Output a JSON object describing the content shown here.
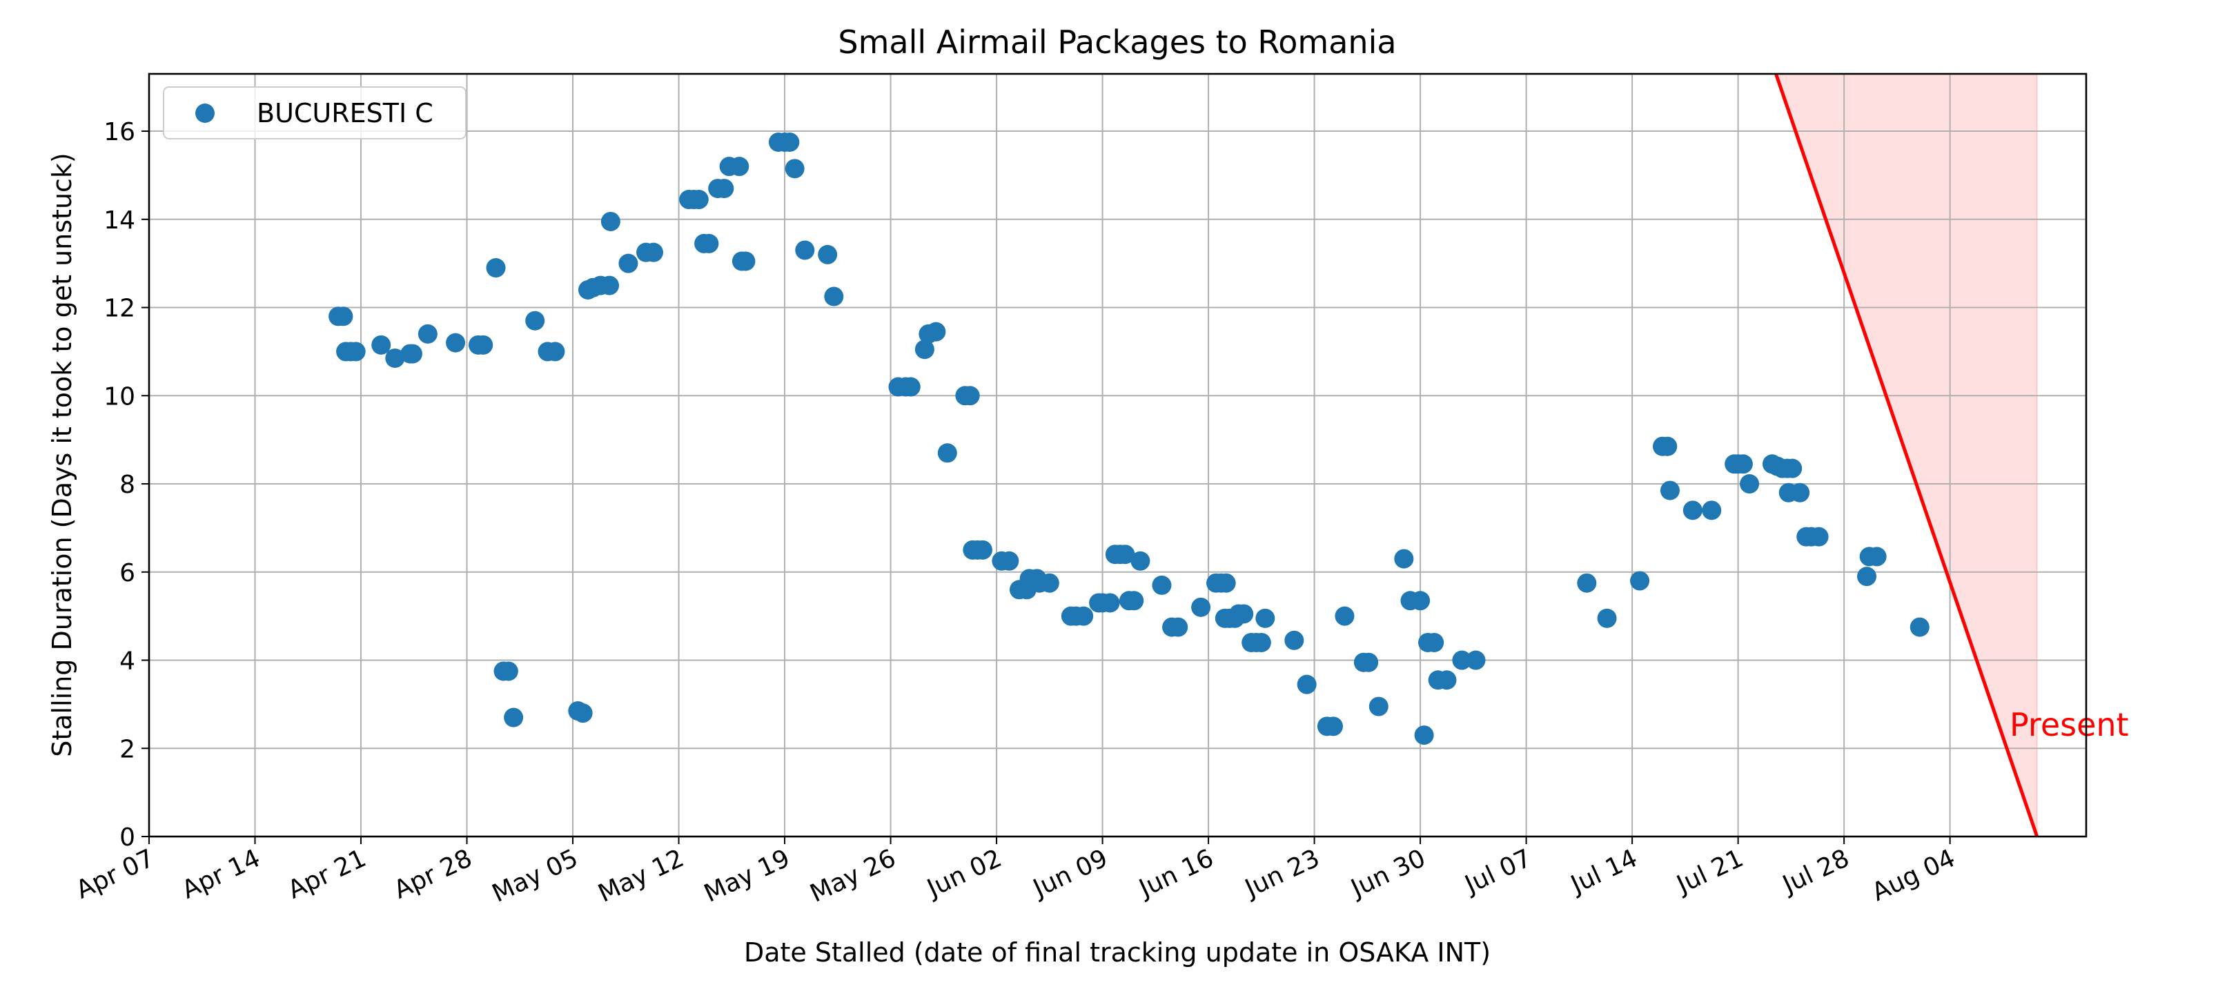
{
  "chart_data": {
    "type": "scatter",
    "title": "Small Airmail Packages to Romania",
    "xlabel": "Date Stalled (date of final tracking update in OSAKA INT)",
    "ylabel": "Stalling Duration (Days it took to get unstuck)",
    "xlim": [
      "2024-04-07",
      "2024-08-13"
    ],
    "ylim": [
      0,
      17.3
    ],
    "grid": true,
    "legend_position": "upper left",
    "x_ticks": [
      "2024-04-07",
      "2024-04-14",
      "2024-04-21",
      "2024-04-28",
      "2024-05-05",
      "2024-05-12",
      "2024-05-19",
      "2024-05-26",
      "2024-06-02",
      "2024-06-09",
      "2024-06-16",
      "2024-06-23",
      "2024-06-30",
      "2024-07-07",
      "2024-07-14",
      "2024-07-21",
      "2024-07-28",
      "2024-08-04"
    ],
    "x_tick_labels": [
      "Apr 07",
      "Apr 14",
      "Apr 21",
      "Apr 28",
      "May 05",
      "May 12",
      "May 19",
      "May 26",
      "Jun 02",
      "Jun 09",
      "Jun 16",
      "Jun 23",
      "Jun 30",
      "Jul 07",
      "Jul 14",
      "Jul 21",
      "Jul 28",
      "Aug 04"
    ],
    "y_ticks": [
      0,
      2,
      4,
      6,
      8,
      10,
      12,
      14,
      16
    ],
    "y_tick_labels": [
      "0",
      "2",
      "4",
      "6",
      "8",
      "10",
      "12",
      "14",
      "16"
    ],
    "series": [
      {
        "name": "BUCURESTI C",
        "color": "#1f77b4",
        "points": [
          [
            "2024-04-19T12",
            11.8
          ],
          [
            "2024-04-19T20",
            11.8
          ],
          [
            "2024-04-20T00",
            11.0
          ],
          [
            "2024-04-20T08",
            11.0
          ],
          [
            "2024-04-20T16",
            11.0
          ],
          [
            "2024-04-22T08",
            11.15
          ],
          [
            "2024-04-23T06",
            10.85
          ],
          [
            "2024-04-24T06",
            10.95
          ],
          [
            "2024-04-24T10",
            10.95
          ],
          [
            "2024-04-25T10",
            11.4
          ],
          [
            "2024-04-27T06",
            11.2
          ],
          [
            "2024-04-28T18",
            11.15
          ],
          [
            "2024-04-29T02",
            11.15
          ],
          [
            "2024-04-29T22",
            12.9
          ],
          [
            "2024-04-30T10",
            3.75
          ],
          [
            "2024-04-30T18",
            3.75
          ],
          [
            "2024-05-01T02",
            2.7
          ],
          [
            "2024-05-02T12",
            11.7
          ],
          [
            "2024-05-03T08",
            11.0
          ],
          [
            "2024-05-03T20",
            11.0
          ],
          [
            "2024-05-05T08",
            2.85
          ],
          [
            "2024-05-05T16",
            2.8
          ],
          [
            "2024-05-06T00",
            12.4
          ],
          [
            "2024-05-06T08",
            12.45
          ],
          [
            "2024-05-06T20",
            12.5
          ],
          [
            "2024-05-07T10",
            12.5
          ],
          [
            "2024-05-07T12",
            13.95
          ],
          [
            "2024-05-08T16",
            13.0
          ],
          [
            "2024-05-09T20",
            13.25
          ],
          [
            "2024-05-10T08",
            13.25
          ],
          [
            "2024-05-12T16",
            14.45
          ],
          [
            "2024-05-13T00",
            14.45
          ],
          [
            "2024-05-13T08",
            14.45
          ],
          [
            "2024-05-13T16",
            13.45
          ],
          [
            "2024-05-14T00",
            13.45
          ],
          [
            "2024-05-14T14",
            14.7
          ],
          [
            "2024-05-15T00",
            14.7
          ],
          [
            "2024-05-15T08",
            15.2
          ],
          [
            "2024-05-16T00",
            15.2
          ],
          [
            "2024-05-16T04",
            13.05
          ],
          [
            "2024-05-16T10",
            13.05
          ],
          [
            "2024-05-18T14",
            15.75
          ],
          [
            "2024-05-19T00",
            15.75
          ],
          [
            "2024-05-19T08",
            15.75
          ],
          [
            "2024-05-19T16",
            15.15
          ],
          [
            "2024-05-20T08",
            13.3
          ],
          [
            "2024-05-21T20",
            13.2
          ],
          [
            "2024-05-22T06",
            12.25
          ],
          [
            "2024-05-26T12",
            10.2
          ],
          [
            "2024-05-27T00",
            10.2
          ],
          [
            "2024-05-27T08",
            10.2
          ],
          [
            "2024-05-28T06",
            11.05
          ],
          [
            "2024-05-28T12",
            11.4
          ],
          [
            "2024-05-29T00",
            11.45
          ],
          [
            "2024-05-29T18",
            8.7
          ],
          [
            "2024-05-30T22",
            10.0
          ],
          [
            "2024-05-31T06",
            10.0
          ],
          [
            "2024-05-31T10",
            6.5
          ],
          [
            "2024-05-31T18",
            6.5
          ],
          [
            "2024-06-01T02",
            6.5
          ],
          [
            "2024-06-02T08",
            6.25
          ],
          [
            "2024-06-02T20",
            6.25
          ],
          [
            "2024-06-03T12",
            5.6
          ],
          [
            "2024-06-04T00",
            5.6
          ],
          [
            "2024-06-04T04",
            5.85
          ],
          [
            "2024-06-04T16",
            5.85
          ],
          [
            "2024-06-04T20",
            5.75
          ],
          [
            "2024-06-05T12",
            5.75
          ],
          [
            "2024-06-06T22",
            5.0
          ],
          [
            "2024-06-07T06",
            5.0
          ],
          [
            "2024-06-07T18",
            5.0
          ],
          [
            "2024-06-08T18",
            5.3
          ],
          [
            "2024-06-09T00",
            5.3
          ],
          [
            "2024-06-09T12",
            5.3
          ],
          [
            "2024-06-09T20",
            6.4
          ],
          [
            "2024-06-10T04",
            6.4
          ],
          [
            "2024-06-10T12",
            6.4
          ],
          [
            "2024-06-10T18",
            5.35
          ],
          [
            "2024-06-11T02",
            5.35
          ],
          [
            "2024-06-11T12",
            6.25
          ],
          [
            "2024-06-12T22",
            5.7
          ],
          [
            "2024-06-13T14",
            4.75
          ],
          [
            "2024-06-14T00",
            4.75
          ],
          [
            "2024-06-15T12",
            5.2
          ],
          [
            "2024-06-16T12",
            5.75
          ],
          [
            "2024-06-16T20",
            5.75
          ],
          [
            "2024-06-17T04",
            5.75
          ],
          [
            "2024-06-17T02",
            4.95
          ],
          [
            "2024-06-17T10",
            4.95
          ],
          [
            "2024-06-17T18",
            4.95
          ],
          [
            "2024-06-18T00",
            5.05
          ],
          [
            "2024-06-18T08",
            5.05
          ],
          [
            "2024-06-18T20",
            4.4
          ],
          [
            "2024-06-19T04",
            4.4
          ],
          [
            "2024-06-19T12",
            4.4
          ],
          [
            "2024-06-19T18",
            4.95
          ],
          [
            "2024-06-21T16",
            4.45
          ],
          [
            "2024-06-22T12",
            3.45
          ],
          [
            "2024-06-23T20",
            2.5
          ],
          [
            "2024-06-24T06",
            2.5
          ],
          [
            "2024-06-25T00",
            5.0
          ],
          [
            "2024-06-26T06",
            3.95
          ],
          [
            "2024-06-26T14",
            3.95
          ],
          [
            "2024-06-27T06",
            2.95
          ],
          [
            "2024-06-28T22",
            6.3
          ],
          [
            "2024-06-29T08",
            5.35
          ],
          [
            "2024-06-30T00",
            5.35
          ],
          [
            "2024-06-30T06",
            2.3
          ],
          [
            "2024-06-30T12",
            4.4
          ],
          [
            "2024-06-30T22",
            4.4
          ],
          [
            "2024-07-01T04",
            3.55
          ],
          [
            "2024-07-01T18",
            3.55
          ],
          [
            "2024-07-02T18",
            4.0
          ],
          [
            "2024-07-03T16",
            4.0
          ],
          [
            "2024-07-11T00",
            5.75
          ],
          [
            "2024-07-12T08",
            4.95
          ],
          [
            "2024-07-14T12",
            5.8
          ],
          [
            "2024-07-16T00",
            8.85
          ],
          [
            "2024-07-16T08",
            8.85
          ],
          [
            "2024-07-16T12",
            7.85
          ],
          [
            "2024-07-18T00",
            7.4
          ],
          [
            "2024-07-19T06",
            7.4
          ],
          [
            "2024-07-20T18",
            8.45
          ],
          [
            "2024-07-21T00",
            8.45
          ],
          [
            "2024-07-21T08",
            8.45
          ],
          [
            "2024-07-21T18",
            8.0
          ],
          [
            "2024-07-23T06",
            8.45
          ],
          [
            "2024-07-23T14",
            8.4
          ],
          [
            "2024-07-23T22",
            8.35
          ],
          [
            "2024-07-24T06",
            8.35
          ],
          [
            "2024-07-24T14",
            8.35
          ],
          [
            "2024-07-24T08",
            7.8
          ],
          [
            "2024-07-25T02",
            7.8
          ],
          [
            "2024-07-25T12",
            6.8
          ],
          [
            "2024-07-25T20",
            6.8
          ],
          [
            "2024-07-26T08",
            6.8
          ],
          [
            "2024-07-29T12",
            5.9
          ],
          [
            "2024-07-29T16",
            6.35
          ],
          [
            "2024-07-30T04",
            6.35
          ],
          [
            "2024-08-02T00",
            4.75
          ]
        ]
      }
    ],
    "reference_line": {
      "label": "Present",
      "color": "#ff0000",
      "points": [
        [
          "2024-07-23T12",
          17.3
        ],
        [
          "2024-08-09T18",
          0
        ]
      ]
    },
    "shaded_region": {
      "color": "#ff0000",
      "opacity": 0.12,
      "from": "reference_line",
      "to_x": "2024-08-09T18"
    }
  }
}
